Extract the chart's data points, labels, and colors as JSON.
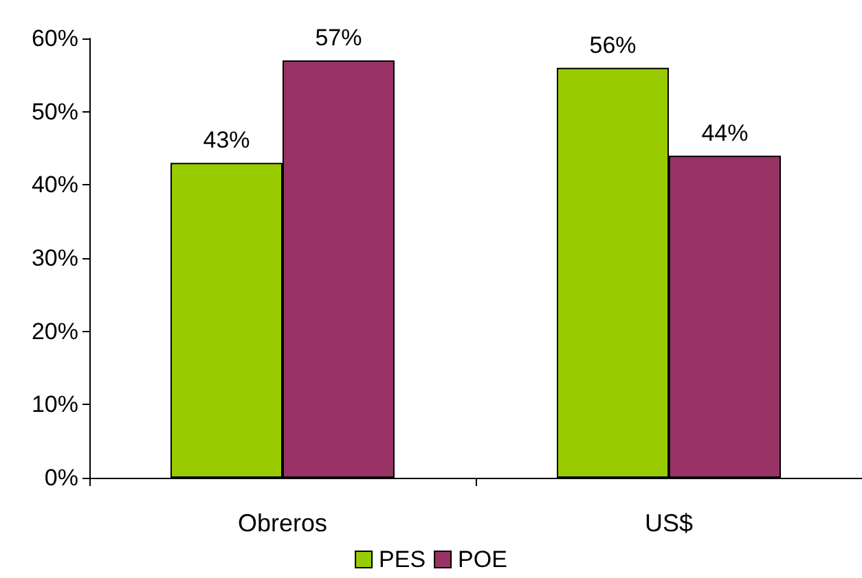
{
  "chart_data": {
    "type": "bar",
    "categories": [
      "Obreros",
      "US$"
    ],
    "series": [
      {
        "name": "PES",
        "color": "#99cc00",
        "values": [
          43,
          56
        ],
        "value_labels": [
          "43%",
          "56%"
        ]
      },
      {
        "name": "POE",
        "color": "#993366",
        "values": [
          57,
          44
        ],
        "value_labels": [
          "57%",
          "44%"
        ]
      }
    ],
    "ylim": [
      0,
      60
    ],
    "yticks": [
      {
        "value": 0,
        "label": "0%"
      },
      {
        "value": 10,
        "label": "10%"
      },
      {
        "value": 20,
        "label": "20%"
      },
      {
        "value": 30,
        "label": "30%"
      },
      {
        "value": 40,
        "label": "40%"
      },
      {
        "value": 50,
        "label": "50%"
      },
      {
        "value": 60,
        "label": "60%"
      }
    ],
    "grid": false,
    "legend": "bottom"
  }
}
